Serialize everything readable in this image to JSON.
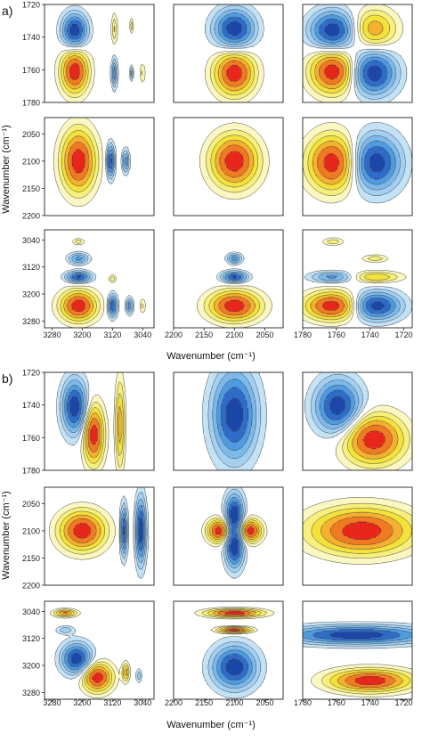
{
  "figure": {
    "panel_labels": [
      "a)",
      "b)"
    ],
    "ylabel": "Wavenumber (cm⁻¹)",
    "xlabel": "Wavenumber (cm⁻¹)"
  },
  "chart_data": {
    "type": "contour",
    "palette": {
      "neg_deep": "#1c46a8",
      "neg_mid": "#4f9be0",
      "neg_light": "#c4e2f6",
      "pos_deep": "#e8261c",
      "pos_mid": "#f2e23a",
      "pos_light": "#fbf7c2",
      "line": "#3a3a3a"
    },
    "row_axes": [
      {
        "ylim": [
          1720,
          1780
        ],
        "ticks": [
          "1720",
          "1740",
          "1760",
          "1780"
        ]
      },
      {
        "ylim": [
          2020,
          2200
        ],
        "ticks": [
          "2050",
          "2100",
          "2150",
          "2200"
        ]
      },
      {
        "ylim": [
          3010,
          3300
        ],
        "ticks": [
          "3040",
          "3120",
          "3200",
          "3280"
        ]
      }
    ],
    "col_axes": [
      {
        "xlim": [
          3300,
          3010
        ],
        "ticks": [
          "3280",
          "3200",
          "3120",
          "3040"
        ]
      },
      {
        "xlim": [
          2200,
          2020
        ],
        "ticks": [
          "2200",
          "2150",
          "2100",
          "2050"
        ]
      },
      {
        "xlim": [
          1780,
          1715
        ],
        "ticks": [
          "1780",
          "1760",
          "1740",
          "1720"
        ]
      }
    ],
    "blocks": [
      {
        "label": "a)",
        "panels": [
          {
            "row": 0,
            "col": 0,
            "peaks": [
              {
                "x": 3220,
                "y": 1736,
                "sx": 22,
                "sy": 7,
                "amp": -1
              },
              {
                "x": 3220,
                "y": 1761,
                "sx": 24,
                "sy": 9,
                "amp": 1
              },
              {
                "x": 3115,
                "y": 1735,
                "sx": 5,
                "sy": 6,
                "amp": 0.35
              },
              {
                "x": 3070,
                "y": 1733,
                "sx": 3,
                "sy": 3,
                "amp": 0.3
              },
              {
                "x": 3115,
                "y": 1762,
                "sx": 5,
                "sy": 6,
                "amp": -0.6
              },
              {
                "x": 3070,
                "y": 1762,
                "sx": 3,
                "sy": 3,
                "amp": -0.4
              },
              {
                "x": 3040,
                "y": 1762,
                "sx": 3,
                "sy": 4,
                "amp": 0.35
              }
            ]
          },
          {
            "row": 0,
            "col": 1,
            "peaks": [
              {
                "x": 2100,
                "y": 1735,
                "sx": 22,
                "sy": 8,
                "amp": -1
              },
              {
                "x": 2100,
                "y": 1762,
                "sx": 22,
                "sy": 9,
                "amp": 1
              }
            ]
          },
          {
            "row": 0,
            "col": 2,
            "peaks": [
              {
                "x": 1762,
                "y": 1736,
                "sx": 9,
                "sy": 8,
                "amp": -1
              },
              {
                "x": 1738,
                "y": 1735,
                "sx": 9,
                "sy": 8,
                "amp": 0.6
              },
              {
                "x": 1762,
                "y": 1761,
                "sx": 9,
                "sy": 9,
                "amp": 1
              },
              {
                "x": 1738,
                "y": 1762,
                "sx": 9,
                "sy": 9,
                "amp": -1
              }
            ]
          },
          {
            "row": 1,
            "col": 0,
            "peaks": [
              {
                "x": 3210,
                "y": 2100,
                "sx": 30,
                "sy": 38,
                "amp": 1
              },
              {
                "x": 3125,
                "y": 2100,
                "sx": 7,
                "sy": 20,
                "amp": -0.9
              },
              {
                "x": 3085,
                "y": 2100,
                "sx": 6,
                "sy": 14,
                "amp": -0.6
              }
            ]
          },
          {
            "row": 1,
            "col": 1,
            "peaks": [
              {
                "x": 2100,
                "y": 2100,
                "sx": 26,
                "sy": 32,
                "amp": 1
              }
            ]
          },
          {
            "row": 1,
            "col": 2,
            "peaks": [
              {
                "x": 1762,
                "y": 2103,
                "sx": 10,
                "sy": 34,
                "amp": 1
              },
              {
                "x": 1737,
                "y": 2103,
                "sx": 10,
                "sy": 34,
                "amp": -1
              }
            ]
          },
          {
            "row": 2,
            "col": 0,
            "peaks": [
              {
                "x": 3210,
                "y": 3235,
                "sx": 32,
                "sy": 30,
                "amp": 1
              },
              {
                "x": 3210,
                "y": 3045,
                "sx": 10,
                "sy": 6,
                "amp": 0.3
              },
              {
                "x": 3210,
                "y": 3095,
                "sx": 18,
                "sy": 11,
                "amp": -0.55
              },
              {
                "x": 3210,
                "y": 3150,
                "sx": 22,
                "sy": 11,
                "amp": -0.9
              },
              {
                "x": 3120,
                "y": 3155,
                "sx": 6,
                "sy": 7,
                "amp": 0.35
              },
              {
                "x": 3120,
                "y": 3235,
                "sx": 8,
                "sy": 22,
                "amp": -0.85
              },
              {
                "x": 3075,
                "y": 3235,
                "sx": 6,
                "sy": 16,
                "amp": -0.6
              },
              {
                "x": 3040,
                "y": 3235,
                "sx": 4,
                "sy": 14,
                "amp": 0.3
              }
            ]
          },
          {
            "row": 2,
            "col": 1,
            "peaks": [
              {
                "x": 2100,
                "y": 3235,
                "sx": 28,
                "sy": 30,
                "amp": 1
              },
              {
                "x": 2100,
                "y": 3095,
                "sx": 8,
                "sy": 10,
                "amp": -0.6
              },
              {
                "x": 2100,
                "y": 3150,
                "sx": 14,
                "sy": 11,
                "amp": -0.9
              }
            ]
          },
          {
            "row": 2,
            "col": 2,
            "peaks": [
              {
                "x": 1762,
                "y": 3235,
                "sx": 11,
                "sy": 28,
                "amp": 1
              },
              {
                "x": 1737,
                "y": 3235,
                "sx": 10,
                "sy": 28,
                "amp": -1
              },
              {
                "x": 1762,
                "y": 3045,
                "sx": 4,
                "sy": 7,
                "amp": 0.3
              },
              {
                "x": 1737,
                "y": 3095,
                "sx": 5,
                "sy": 7,
                "amp": 0.3
              },
              {
                "x": 1762,
                "y": 3150,
                "sx": 9,
                "sy": 11,
                "amp": -0.55
              },
              {
                "x": 1737,
                "y": 3150,
                "sx": 10,
                "sy": 11,
                "amp": 0.5
              }
            ]
          }
        ]
      },
      {
        "label": "b)",
        "panels": [
          {
            "row": 0,
            "col": 0,
            "peaks": [
              {
                "x": 3220,
                "y": 1741,
                "sx": 22,
                "sy": 11,
                "amp": -1
              },
              {
                "x": 3170,
                "y": 1758,
                "sx": 18,
                "sy": 12,
                "amp": 1
              },
              {
                "x": 3100,
                "y": 1752,
                "sx": 8,
                "sy": 18,
                "amp": 0.6
              }
            ]
          },
          {
            "row": 0,
            "col": 1,
            "peaks": [
              {
                "x": 2100,
                "y": 1746,
                "sx": 24,
                "sy": 18,
                "amp": -1
              }
            ]
          },
          {
            "row": 0,
            "col": 2,
            "peaks": [
              {
                "x": 1759,
                "y": 1741,
                "sx": 9,
                "sy": 11,
                "amp": -1
              },
              {
                "x": 1738,
                "y": 1761,
                "sx": 12,
                "sy": 10,
                "amp": 1
              }
            ]
          },
          {
            "row": 1,
            "col": 0,
            "peaks": [
              {
                "x": 3200,
                "y": 2100,
                "sx": 40,
                "sy": 24,
                "amp": 1
              },
              {
                "x": 3090,
                "y": 2100,
                "sx": 6,
                "sy": 30,
                "amp": -0.9
              },
              {
                "x": 3045,
                "y": 2100,
                "sx": 9,
                "sy": 40,
                "amp": -1
              }
            ]
          },
          {
            "row": 1,
            "col": 1,
            "peaks": [
              {
                "x": 2125,
                "y": 2100,
                "sx": 13,
                "sy": 14,
                "amp": 1
              },
              {
                "x": 2075,
                "y": 2100,
                "sx": 13,
                "sy": 14,
                "amp": 1
              },
              {
                "x": 2100,
                "y": 2070,
                "sx": 10,
                "sy": 26,
                "amp": -1
              },
              {
                "x": 2100,
                "y": 2130,
                "sx": 10,
                "sy": 26,
                "amp": -1
              }
            ]
          },
          {
            "row": 1,
            "col": 2,
            "peaks": [
              {
                "x": 1745,
                "y": 2100,
                "sx": 20,
                "sy": 28,
                "amp": 1
              }
            ]
          },
          {
            "row": 2,
            "col": 0,
            "peaks": [
              {
                "x": 3245,
                "y": 3045,
                "sx": 20,
                "sy": 7,
                "amp": 0.7
              },
              {
                "x": 3245,
                "y": 3095,
                "sx": 16,
                "sy": 8,
                "amp": -0.3
              },
              {
                "x": 3215,
                "y": 3180,
                "sx": 26,
                "sy": 30,
                "amp": -1
              },
              {
                "x": 3160,
                "y": 3235,
                "sx": 26,
                "sy": 28,
                "amp": 1
              },
              {
                "x": 3085,
                "y": 3220,
                "sx": 6,
                "sy": 18,
                "amp": 0.6
              },
              {
                "x": 3050,
                "y": 3230,
                "sx": 5,
                "sy": 14,
                "amp": -0.3
              }
            ]
          },
          {
            "row": 2,
            "col": 1,
            "peaks": [
              {
                "x": 2100,
                "y": 3045,
                "sx": 30,
                "sy": 8,
                "amp": 1
              },
              {
                "x": 2100,
                "y": 3095,
                "sx": 18,
                "sy": 6,
                "amp": 1
              },
              {
                "x": 2100,
                "y": 3205,
                "sx": 24,
                "sy": 42,
                "amp": -1
              }
            ]
          },
          {
            "row": 2,
            "col": 2,
            "peaks": [
              {
                "x": 1748,
                "y": 3110,
                "sx": 28,
                "sy": 18,
                "amp": -1
              },
              {
                "x": 1740,
                "y": 3245,
                "sx": 16,
                "sy": 22,
                "amp": 1
              }
            ]
          }
        ]
      }
    ]
  }
}
